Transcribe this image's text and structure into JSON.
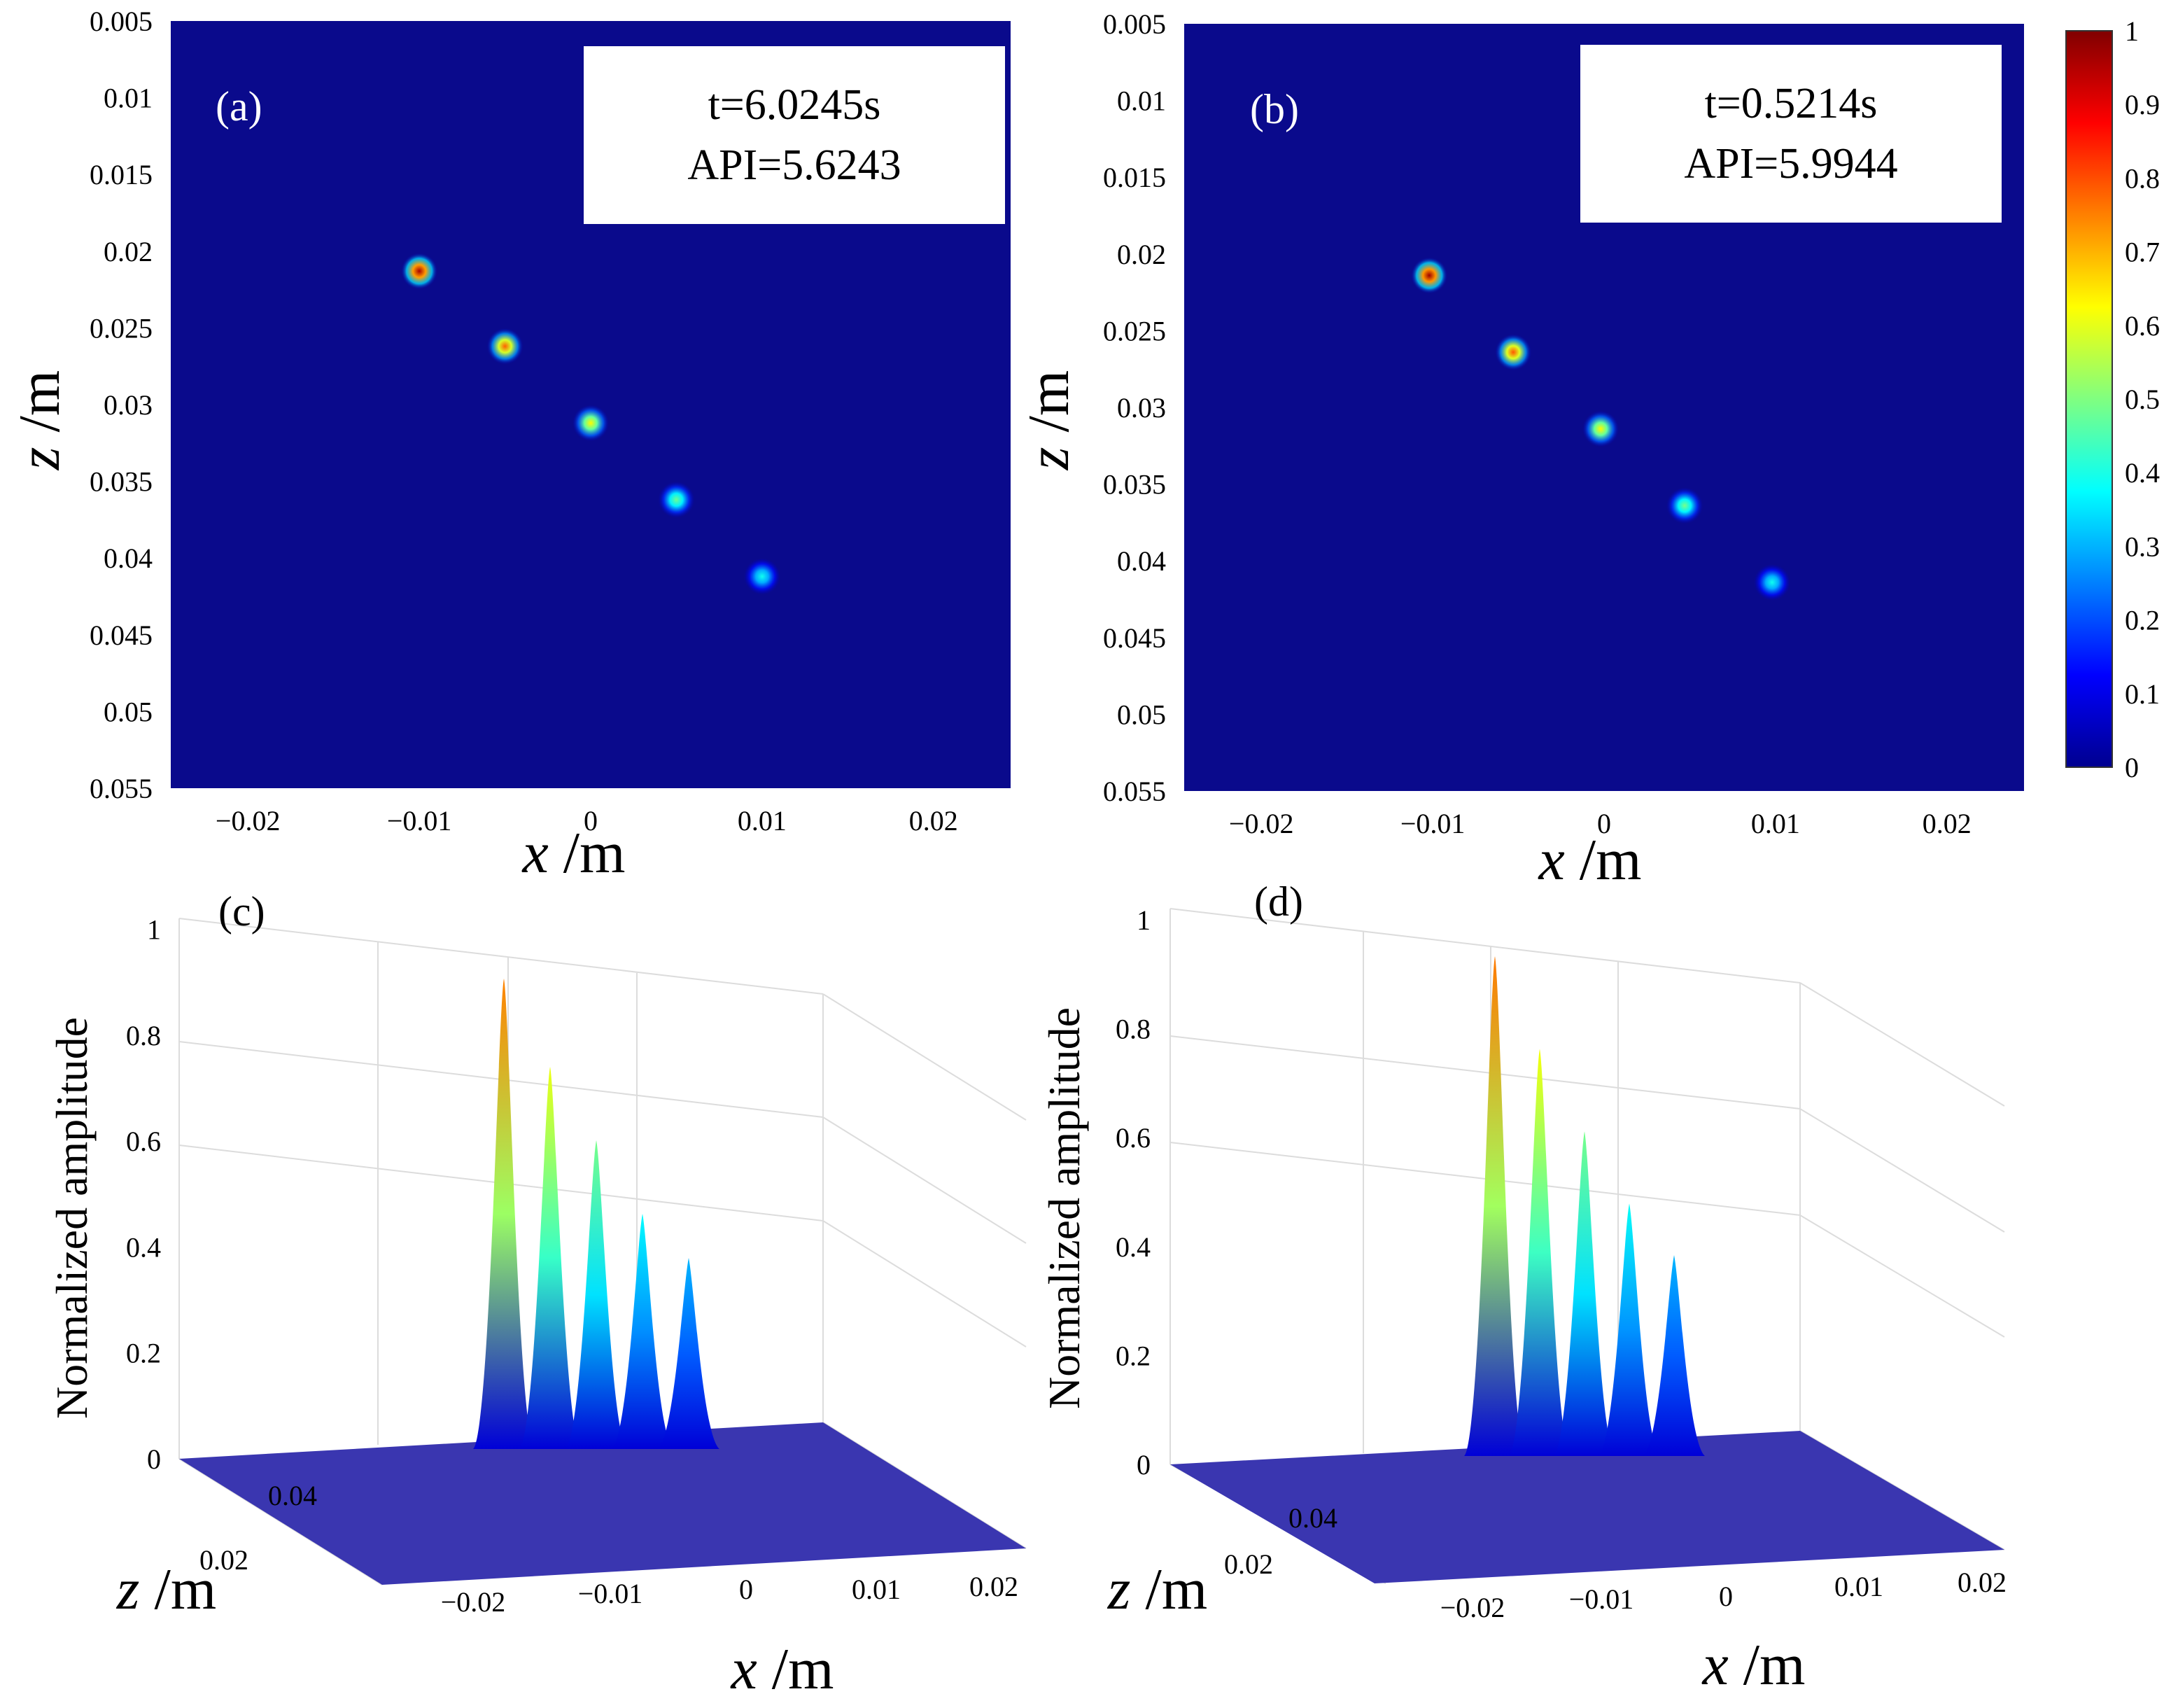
{
  "colorbar": {
    "ticks": [
      "0",
      "0.1",
      "0.2",
      "0.3",
      "0.4",
      "0.5",
      "0.6",
      "0.7",
      "0.8",
      "0.9",
      "1"
    ],
    "colormap": [
      "#00008f",
      "#0000ff",
      "#0080ff",
      "#00ffff",
      "#80ff80",
      "#ffff00",
      "#ff8000",
      "#ff0000",
      "#800000"
    ]
  },
  "colors": {
    "heatmap_background": "#0a0a8c",
    "surface_floor": "#3a36b0"
  },
  "chart_data": [
    {
      "panel": "(a)",
      "type": "heatmap",
      "annotation": {
        "line1": "t=6.0245s",
        "line2": "API=5.6243"
      },
      "xlabel_var": "x",
      "xlabel_unit": " /m",
      "ylabel_var": "z",
      "ylabel_unit": " /m",
      "xlim": [
        -0.0245,
        0.0245
      ],
      "ylim": [
        0.005,
        0.055
      ],
      "y_reversed": true,
      "xtick_labels": [
        "-0.02",
        "-0.01",
        "0",
        "0.01",
        "0.02"
      ],
      "xticks": [
        -0.02,
        -0.01,
        0,
        0.01,
        0.02
      ],
      "ytick_labels": [
        "0.005",
        "0.01",
        "0.015",
        "0.02",
        "0.025",
        "0.03",
        "0.035",
        "0.04",
        "0.045",
        "0.05",
        "0.055"
      ],
      "yticks": [
        0.005,
        0.01,
        0.015,
        0.02,
        0.025,
        0.03,
        0.035,
        0.04,
        0.045,
        0.05,
        0.055
      ],
      "points": [
        {
          "x": -0.01,
          "z": 0.0213,
          "amplitude": 0.96
        },
        {
          "x": -0.005,
          "z": 0.0262,
          "amplitude": 0.78
        },
        {
          "x": 0.0,
          "z": 0.0312,
          "amplitude": 0.63
        },
        {
          "x": 0.005,
          "z": 0.0362,
          "amplitude": 0.48
        },
        {
          "x": 0.01,
          "z": 0.0412,
          "amplitude": 0.39
        }
      ]
    },
    {
      "panel": "(b)",
      "type": "heatmap",
      "annotation": {
        "line1": "t=0.5214s",
        "line2": "API=5.9944"
      },
      "xlabel_var": "x",
      "xlabel_unit": " /m",
      "ylabel_var": "z",
      "ylabel_unit": " /m",
      "xlim": [
        -0.0245,
        0.0245
      ],
      "ylim": [
        0.005,
        0.055
      ],
      "y_reversed": true,
      "xtick_labels": [
        "-0.02",
        "-0.01",
        "0",
        "0.01",
        "0.02"
      ],
      "xticks": [
        -0.02,
        -0.01,
        0,
        0.01,
        0.02
      ],
      "ytick_labels": [
        "0.005",
        "0.01",
        "0.015",
        "0.02",
        "0.025",
        "0.03",
        "0.035",
        "0.04",
        "0.045",
        "0.05",
        "0.055"
      ],
      "yticks": [
        0.005,
        0.01,
        0.015,
        0.02,
        0.025,
        0.03,
        0.035,
        0.04,
        0.045,
        0.05,
        0.055
      ],
      "points": [
        {
          "x": -0.0102,
          "z": 0.0214,
          "amplitude": 0.97
        },
        {
          "x": -0.0053,
          "z": 0.0264,
          "amplitude": 0.79
        },
        {
          "x": -0.0002,
          "z": 0.0314,
          "amplitude": 0.63
        },
        {
          "x": 0.0047,
          "z": 0.0364,
          "amplitude": 0.49
        },
        {
          "x": 0.0098,
          "z": 0.0414,
          "amplitude": 0.39
        }
      ]
    },
    {
      "panel": "(c)",
      "type": "surface",
      "xlabel_var": "x",
      "xlabel_unit": " /m",
      "ylabel_var": "z",
      "ylabel_unit": " /m",
      "zlabel": "Normalized amplitude",
      "xtick_labels": [
        "-0.02",
        "-0.01",
        "0",
        "0.01",
        "0.02"
      ],
      "ytick_labels": [
        "0.02",
        "0.04"
      ],
      "ztick_labels": [
        "0",
        "0.2",
        "0.4",
        "0.6",
        "0.8",
        "1"
      ],
      "zlim": [
        0,
        1
      ],
      "peaks": [
        {
          "x": -0.01,
          "amplitude": 0.96
        },
        {
          "x": -0.005,
          "amplitude": 0.78
        },
        {
          "x": 0.0,
          "amplitude": 0.63
        },
        {
          "x": 0.005,
          "amplitude": 0.48
        },
        {
          "x": 0.01,
          "amplitude": 0.39
        }
      ]
    },
    {
      "panel": "(d)",
      "type": "surface",
      "xlabel_var": "x",
      "xlabel_unit": " /m",
      "ylabel_var": "z",
      "ylabel_unit": " /m",
      "zlabel": "Normalized amplitude",
      "xtick_labels": [
        "-0.02",
        "-0.01",
        "0",
        "0.01",
        "0.02"
      ],
      "ytick_labels": [
        "0.02",
        "0.04"
      ],
      "ztick_labels": [
        "0",
        "0.2",
        "0.4",
        "0.6",
        "0.8",
        "1"
      ],
      "zlim": [
        0,
        1
      ],
      "peaks": [
        {
          "x": -0.01,
          "amplitude": 0.97
        },
        {
          "x": -0.005,
          "amplitude": 0.79
        },
        {
          "x": 0.0,
          "amplitude": 0.63
        },
        {
          "x": 0.005,
          "amplitude": 0.49
        },
        {
          "x": 0.01,
          "amplitude": 0.39
        }
      ]
    }
  ]
}
